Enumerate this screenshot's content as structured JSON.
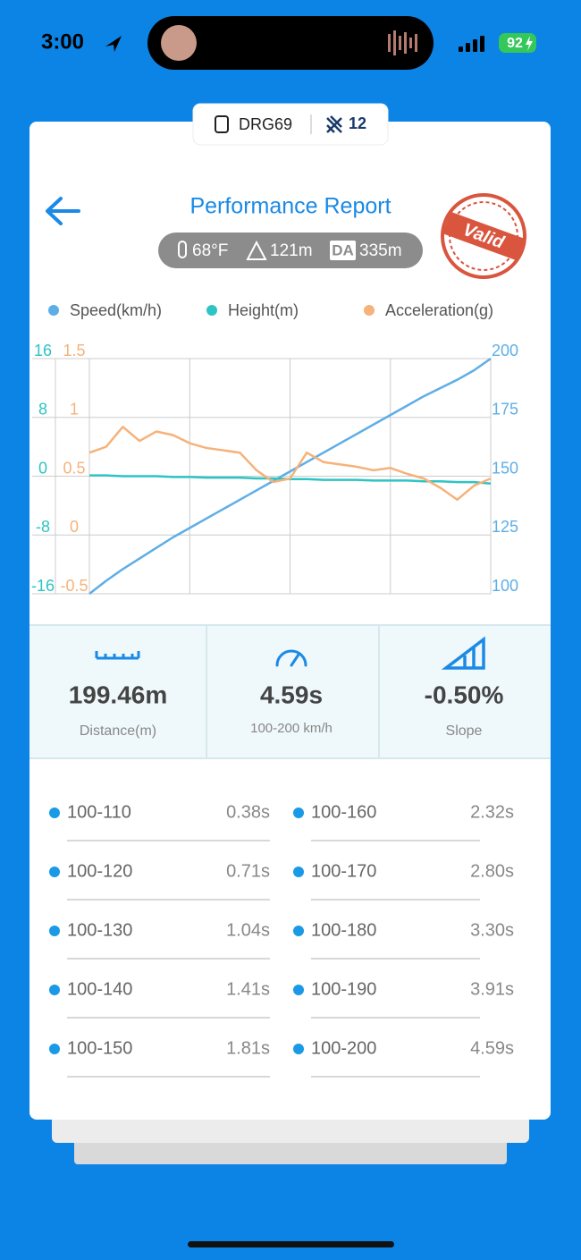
{
  "status_bar": {
    "time": "3:00",
    "battery": "92"
  },
  "device": {
    "name": "DRG69",
    "count": "12"
  },
  "header": {
    "title": "Performance Report",
    "temperature": "68°F",
    "altitude": "121m",
    "da_label": "DA",
    "da_value": "335m",
    "stamp": "Valid"
  },
  "chart_data": {
    "type": "line",
    "categories": [
      null,
      null,
      null,
      null,
      null,
      null,
      null,
      null,
      null,
      null,
      null,
      null,
      null,
      null,
      null,
      null,
      null,
      null,
      null,
      null,
      null,
      null,
      null,
      null,
      null
    ],
    "series": [
      {
        "name": "Speed(km/h)",
        "color": "#5eaee6",
        "axis": "y",
        "values": [
          100,
          105.5,
          110.5,
          115,
          119.5,
          124,
          128,
          132,
          136,
          140,
          144,
          148,
          152,
          156,
          160,
          164,
          168,
          172,
          176,
          180,
          184,
          187.5,
          191,
          195,
          200
        ]
      },
      {
        "name": "Height(m)",
        "color": "#2ec4c4",
        "axis": "y2",
        "values": [
          0.1,
          0.1,
          0,
          0,
          0,
          -0.1,
          -0.1,
          -0.2,
          -0.2,
          -0.2,
          -0.3,
          -0.3,
          -0.4,
          -0.4,
          -0.5,
          -0.5,
          -0.5,
          -0.6,
          -0.6,
          -0.6,
          -0.7,
          -0.7,
          -0.8,
          -0.8,
          -1.0
        ]
      },
      {
        "name": "Acceleration(g)",
        "color": "#f5b27a",
        "axis": "y3",
        "values": [
          0.7,
          0.75,
          0.92,
          0.8,
          0.88,
          0.85,
          0.78,
          0.74,
          0.72,
          0.7,
          0.55,
          0.45,
          0.48,
          0.7,
          0.62,
          0.6,
          0.58,
          0.55,
          0.57,
          0.52,
          0.48,
          0.4,
          0.3,
          0.42,
          0.48
        ]
      }
    ],
    "ylim": [
      100,
      200
    ],
    "yticks": [
      100,
      125,
      150,
      175,
      200
    ],
    "y2lim": [
      -16,
      16
    ],
    "y2ticks": [
      -16,
      -8,
      0,
      8,
      16
    ],
    "y3lim": [
      -0.5,
      1.5
    ],
    "y3ticks": [
      -0.5,
      0,
      0.5,
      1,
      1.5
    ],
    "grid": true
  },
  "stats": [
    {
      "value": "199.46m",
      "label": "Distance(m)"
    },
    {
      "value": "4.59s",
      "label": "100-200 km/h"
    },
    {
      "value": "-0.50%",
      "label": "Slope"
    }
  ],
  "splits": [
    {
      "range": "100-110",
      "time": "0.38s"
    },
    {
      "range": "100-120",
      "time": "0.71s"
    },
    {
      "range": "100-130",
      "time": "1.04s"
    },
    {
      "range": "100-140",
      "time": "1.41s"
    },
    {
      "range": "100-150",
      "time": "1.81s"
    },
    {
      "range": "100-160",
      "time": "2.32s"
    },
    {
      "range": "100-170",
      "time": "2.80s"
    },
    {
      "range": "100-180",
      "time": "3.30s"
    },
    {
      "range": "100-190",
      "time": "3.91s"
    },
    {
      "range": "100-200",
      "time": "4.59s"
    }
  ]
}
